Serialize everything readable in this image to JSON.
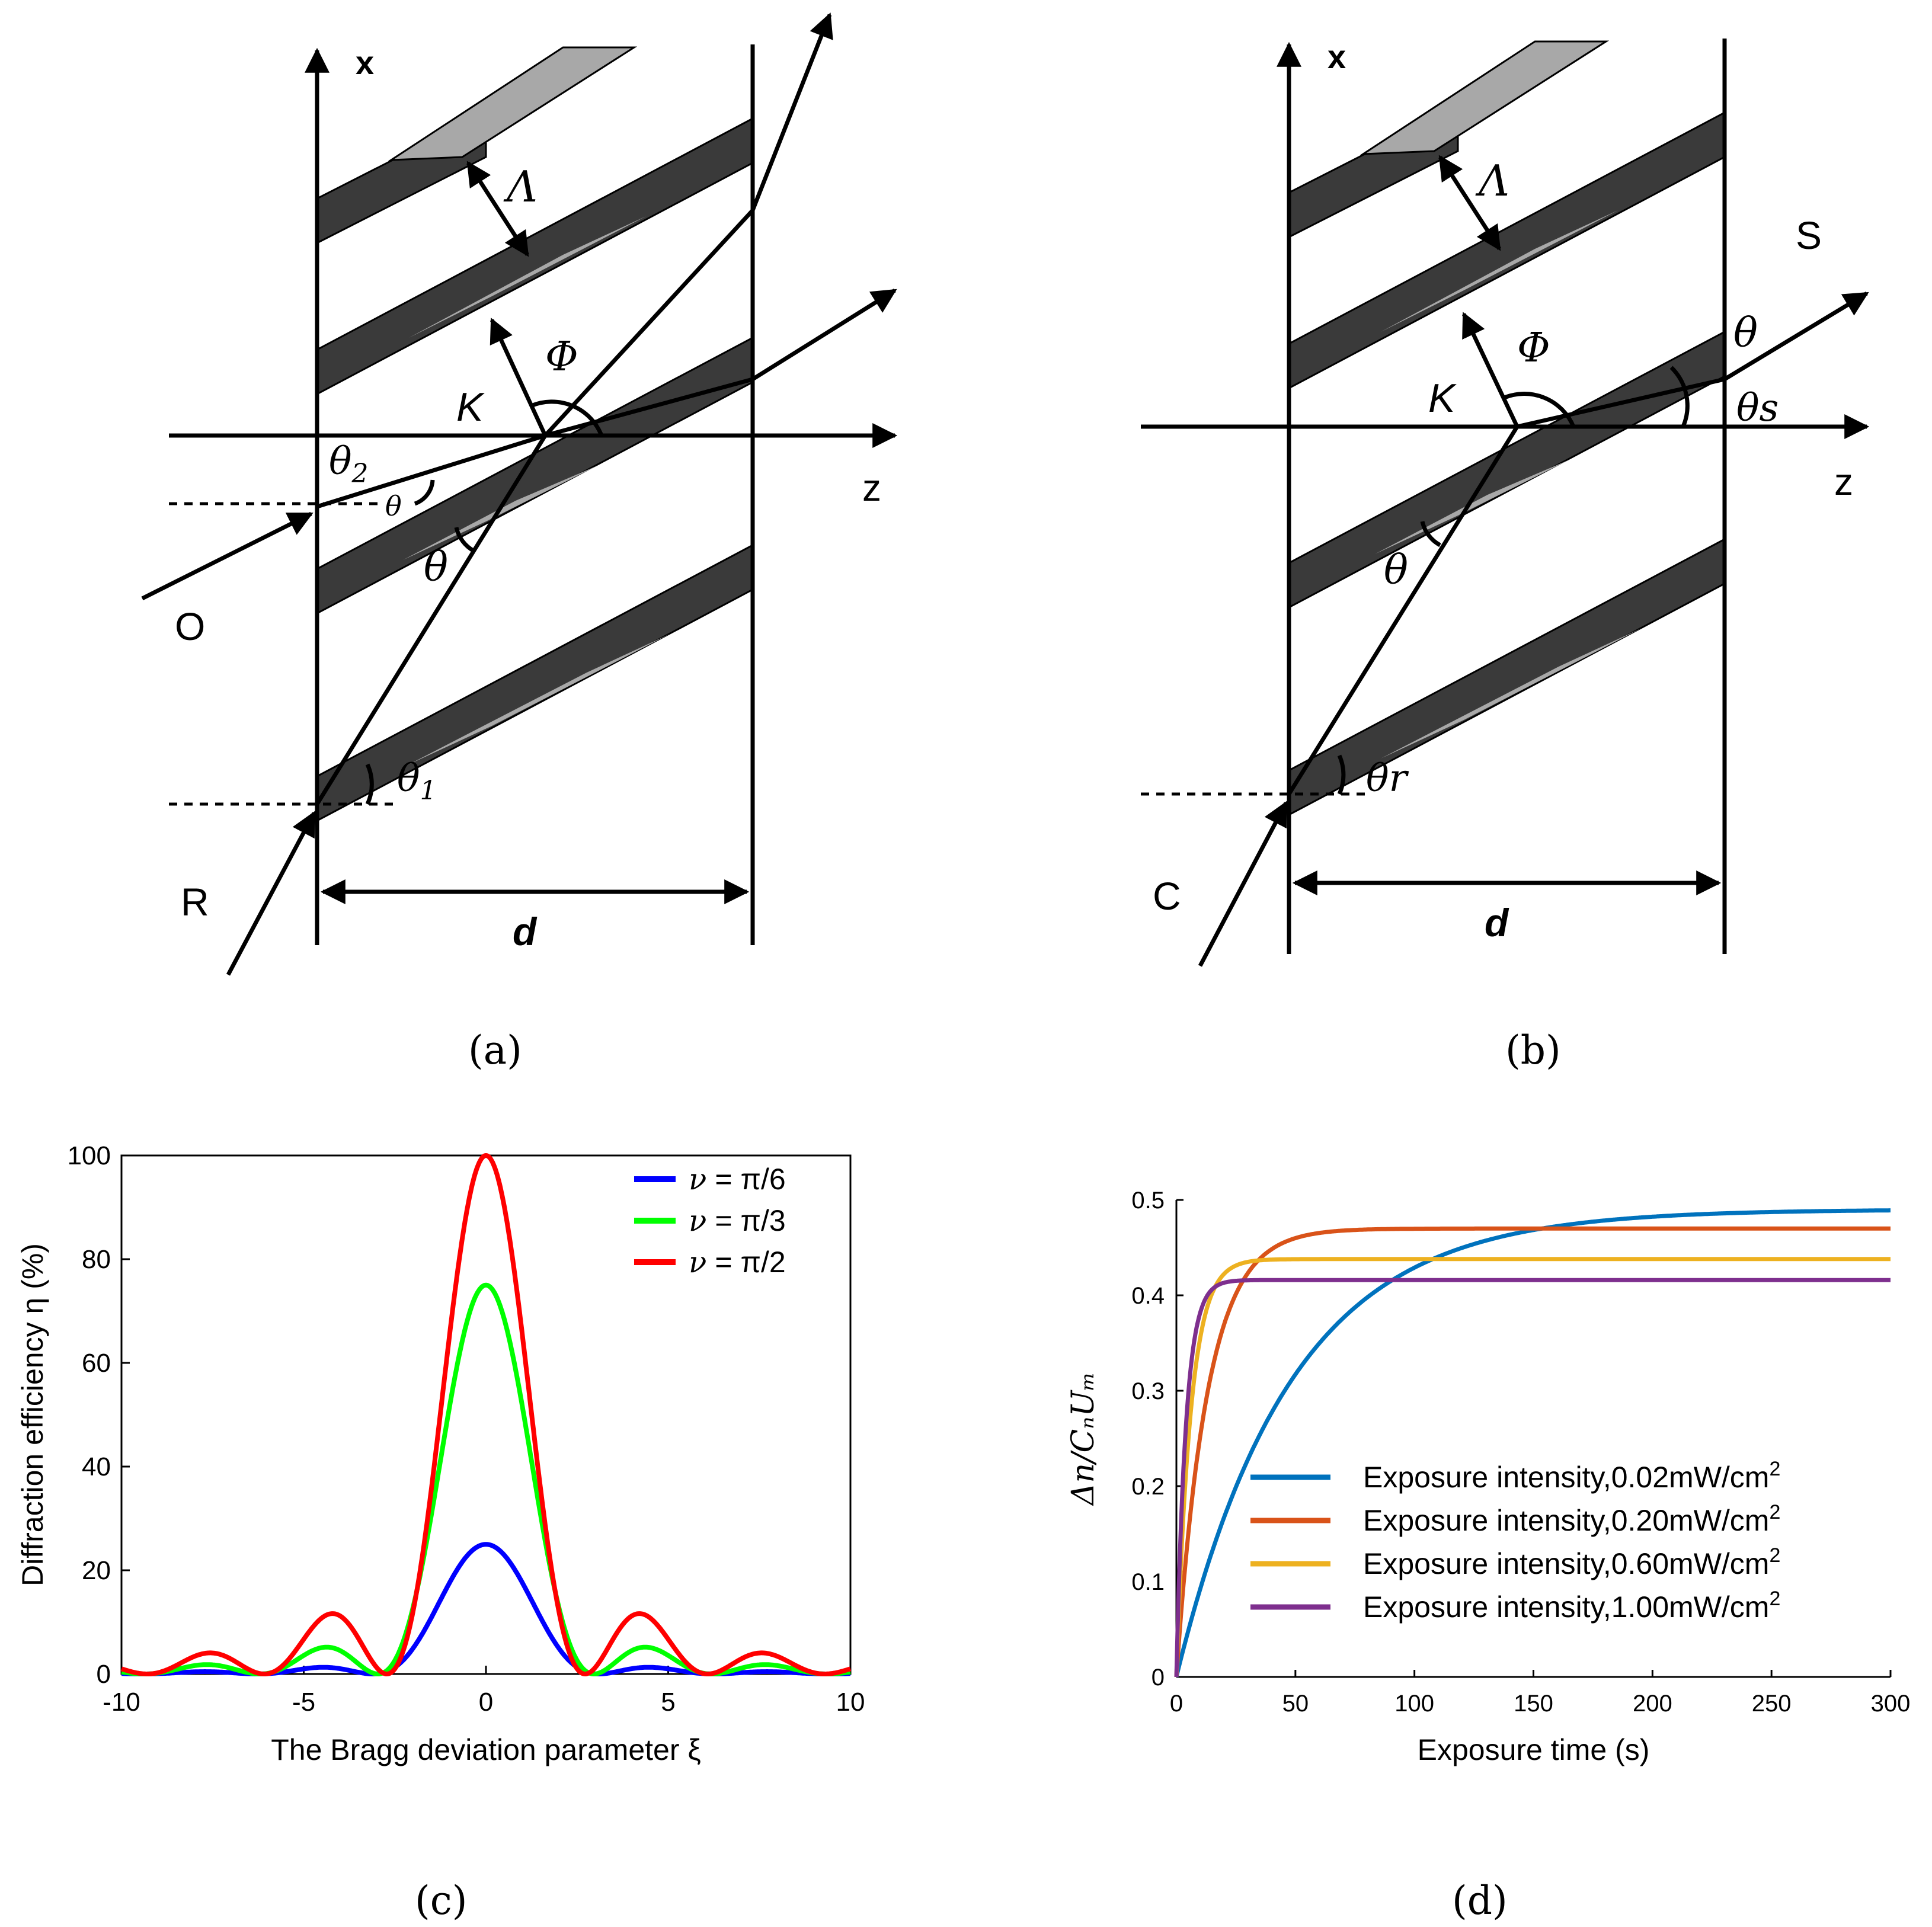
{
  "colors": {
    "stripe_dark": "#3a3a3a",
    "stripe_light": "#a8a8a8",
    "ink": "#000000",
    "c_blue": "#0000ff",
    "c_green": "#00ff00",
    "c_red": "#ff0000",
    "d_blue": "#0072bd",
    "d_orange": "#d95319",
    "d_yellow": "#edb120",
    "d_purple": "#7e2f8e"
  },
  "panel_a": {
    "caption": "(a)",
    "axis_x": "x",
    "axis_z": "z",
    "period": "Λ",
    "grating_vector": "K",
    "angle_phi": "Φ",
    "theta2": "θ",
    "theta2_sub": "2",
    "theta": "θ",
    "theta1": "θ",
    "theta1_sub": "1",
    "beam_object": "O",
    "beam_reference": "R",
    "thickness": "d"
  },
  "panel_b": {
    "caption": "(b)",
    "axis_x": "x",
    "axis_z": "z",
    "period": "Λ",
    "grating_vector": "K",
    "angle_phi": "Φ",
    "theta": "θ",
    "theta_s": "θs",
    "theta_r": "θr",
    "beam_signal": "S",
    "beam_conjugate": "C",
    "thickness": "d"
  },
  "panel_c": {
    "caption": "(c)"
  },
  "panel_d": {
    "caption": "(d)"
  },
  "chart_data": [
    {
      "type": "line",
      "id": "c",
      "title": "",
      "xlabel": "The Bragg deviation parameter ξ",
      "ylabel": "Diffraction efficiency η (%)",
      "xlim": [
        -10,
        10
      ],
      "ylim": [
        0,
        100
      ],
      "xticks": [
        -10,
        -5,
        0,
        5,
        10
      ],
      "yticks": [
        0,
        20,
        40,
        60,
        80,
        100
      ],
      "legend_position": "top-right",
      "model": "η = 100·sin²(√(ν²+ξ²))/(1+ξ²/ν²)",
      "series": [
        {
          "name": "ν = π/6",
          "legend_var": "ν",
          "legend_val": "= π/6",
          "nu": 0.5236,
          "peak": 25,
          "side_lobes": [
            [
              -4.3,
              1.3
            ],
            [
              4.3,
              1.3
            ],
            [
              -7.6,
              0.5
            ],
            [
              7.6,
              0.5
            ]
          ]
        },
        {
          "name": "ν = π/3",
          "legend_var": "ν",
          "legend_val": "= π/3",
          "nu": 1.0472,
          "peak": 75,
          "side_lobes": [
            [
              -4.3,
              5.2
            ],
            [
              4.3,
              5.2
            ],
            [
              -7.6,
              1.9
            ],
            [
              7.6,
              1.9
            ]
          ]
        },
        {
          "name": "ν = π/2",
          "legend_var": "ν",
          "legend_val": "= π/2",
          "nu": 1.5708,
          "peak": 100,
          "side_lobes": [
            [
              -4.3,
              11.5
            ],
            [
              4.3,
              11.5
            ],
            [
              -7.6,
              4.1
            ],
            [
              7.6,
              4.1
            ]
          ]
        }
      ]
    },
    {
      "type": "line",
      "id": "d",
      "title": "",
      "xlabel": "Exposure time (s)",
      "ylabel": "Δn/CₙUₘ",
      "xlim": [
        0,
        300
      ],
      "ylim": [
        0,
        0.5
      ],
      "xticks": [
        0,
        50,
        100,
        150,
        200,
        250,
        300
      ],
      "ytick_labels": [
        "0",
        "0.1",
        "0.2",
        "0.3",
        "0.4",
        "0.5"
      ],
      "yticks": [
        0,
        0.1,
        0.2,
        0.3,
        0.4,
        0.5
      ],
      "legend_position": "bottom-right",
      "model": "y = A·(1 − exp(−t/τ))",
      "series": [
        {
          "name": "Exposure intensity,0.02mW/cm",
          "sup": "2",
          "A": 0.49,
          "tau": 48
        },
        {
          "name": "Exposure intensity,0.20mW/cm",
          "sup": "2",
          "A": 0.47,
          "tau": 13
        },
        {
          "name": "Exposure intensity,0.60mW/cm",
          "sup": "2",
          "A": 0.438,
          "tau": 6
        },
        {
          "name": "Exposure intensity,1.00mW/cm",
          "sup": "2",
          "A": 0.416,
          "tau": 4
        }
      ]
    }
  ]
}
